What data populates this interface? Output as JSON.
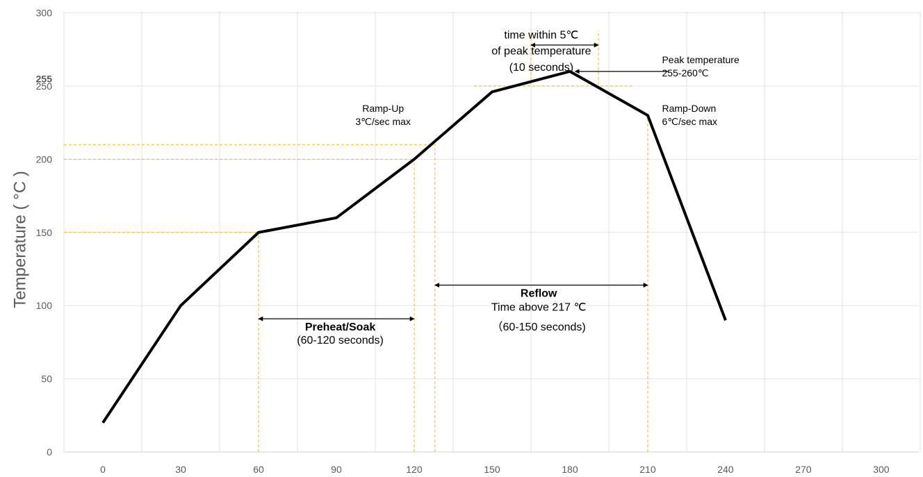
{
  "chart_data": {
    "type": "line",
    "title": "",
    "xlabel": "",
    "ylabel": "Temperature ( °C )",
    "xlim": [
      -5,
      310
    ],
    "ylim": [
      0,
      300
    ],
    "x_ticks": [
      0,
      30,
      60,
      90,
      120,
      150,
      180,
      210,
      240,
      270,
      300
    ],
    "y_ticks": [
      0,
      50,
      100,
      150,
      200,
      250,
      300
    ],
    "extra_y_tick": {
      "value": 255,
      "label": "255"
    },
    "grid": true,
    "legend": "none",
    "series": [
      {
        "x": [
          0,
          30,
          60,
          90,
          120,
          150,
          180,
          210,
          240
        ],
        "y": [
          20,
          100,
          150,
          160,
          200,
          246,
          260,
          230,
          90
        ],
        "color": "#000000"
      }
    ],
    "reference_lines": {
      "color": "#f5b800",
      "horizontal": [
        {
          "y": 150,
          "x_from": -15,
          "x_to": 60
        },
        {
          "y": 200,
          "x_from": -15,
          "x_to": 120
        },
        {
          "y": 210,
          "x_from": -15,
          "x_to": 128
        },
        {
          "y": 250,
          "x_from": 143,
          "x_to": 204
        }
      ],
      "vertical": [
        {
          "x": 60,
          "y_from": 0,
          "y_to": 150
        },
        {
          "x": 120,
          "y_from": 0,
          "y_to": 200
        },
        {
          "x": 128,
          "y_from": 0,
          "y_to": 210
        },
        {
          "x": 210,
          "y_from": 0,
          "y_to": 230
        },
        {
          "x": 165,
          "y_from": 251,
          "y_to": 288
        },
        {
          "x": 191,
          "y_from": 251,
          "y_to": 288
        }
      ]
    },
    "arrows": [
      {
        "name": "preheat-arrow",
        "x_from": 60,
        "x_to": 120,
        "y": 91
      },
      {
        "name": "reflow-arrow",
        "x_from": 128,
        "x_to": 210,
        "y": 114
      },
      {
        "name": "peak-window-arrow",
        "x_from": 165,
        "x_to": 191,
        "y": 278
      },
      {
        "name": "peak-pointer-arrow",
        "x_from": 218,
        "x_to": 182,
        "y": 260
      }
    ],
    "annotations": [
      {
        "name": "annotation-time-within",
        "text": "time within 5℃",
        "x": 169,
        "y": 282.5,
        "anchor": "middle",
        "size": 16,
        "bold": false
      },
      {
        "name": "annotation-of-peak",
        "text": "of peak temperature",
        "x": 169,
        "y": 271.5,
        "anchor": "middle",
        "size": 16,
        "bold": false
      },
      {
        "name": "annotation-ten-seconds",
        "text": "(10 seconds)",
        "x": 169,
        "y": 260.5,
        "anchor": "middle",
        "size": 16,
        "bold": false
      },
      {
        "name": "annotation-peak-title",
        "text": "Peak temperature",
        "x": 215.5,
        "y": 265.5,
        "anchor": "start",
        "size": 14,
        "bold": false
      },
      {
        "name": "annotation-peak-range",
        "text": "255-260℃",
        "x": 215.5,
        "y": 256.5,
        "anchor": "start",
        "size": 14,
        "bold": false
      },
      {
        "name": "annotation-rampup-title",
        "text": "Ramp-Up",
        "x": 108,
        "y": 232.5,
        "anchor": "middle",
        "size": 14,
        "bold": false
      },
      {
        "name": "annotation-rampup-rate",
        "text": "3℃/sec max",
        "x": 108,
        "y": 223.5,
        "anchor": "middle",
        "size": 14,
        "bold": false
      },
      {
        "name": "annotation-rampdown-title",
        "text": "Ramp-Down",
        "x": 215.5,
        "y": 232.5,
        "anchor": "start",
        "size": 14,
        "bold": false
      },
      {
        "name": "annotation-rampdown-rate",
        "text": "6℃/sec max",
        "x": 215.5,
        "y": 223.5,
        "anchor": "start",
        "size": 14,
        "bold": false
      },
      {
        "name": "annotation-reflow-title",
        "text": "Reflow",
        "x": 168,
        "y": 106,
        "anchor": "middle",
        "size": 16,
        "bold": true
      },
      {
        "name": "annotation-reflow-desc",
        "text": "Time above 217 ℃",
        "x": 168,
        "y": 96.5,
        "anchor": "middle",
        "size": 16,
        "bold": false
      },
      {
        "name": "annotation-reflow-range",
        "text": "（60-150 seconds)",
        "x": 168,
        "y": 83,
        "anchor": "middle",
        "size": 16,
        "bold": false
      },
      {
        "name": "annotation-preheat-title",
        "text": "Preheat/Soak",
        "x": 91.5,
        "y": 83,
        "anchor": "middle",
        "size": 16,
        "bold": true
      },
      {
        "name": "annotation-preheat-range",
        "text": "(60-120 seconds)",
        "x": 91.5,
        "y": 74,
        "anchor": "middle",
        "size": 16,
        "bold": false
      }
    ]
  }
}
